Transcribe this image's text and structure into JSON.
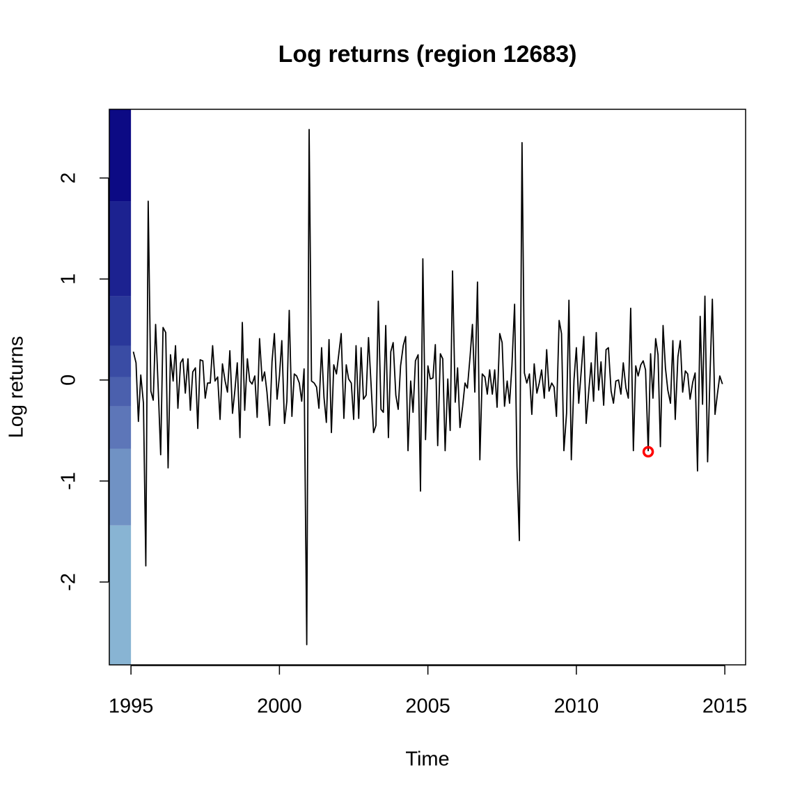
{
  "chart_data": {
    "type": "line",
    "title": "Log returns (region 12683)",
    "x_label": "Time",
    "y_label": "Log returns",
    "xlim": [
      1994.27,
      2015.7
    ],
    "ylim": [
      -2.82,
      2.68
    ],
    "xticks": [
      1995,
      2000,
      2005,
      2010,
      2015
    ],
    "yticks": [
      -2,
      -1,
      0,
      1,
      2
    ],
    "color_bins": {
      "breaks": [
        2.68,
        1.77,
        0.83,
        0.34,
        0.03,
        -0.26,
        -0.68,
        -1.44,
        -2.82
      ],
      "colors": [
        "#0c0a84",
        "#1c2290",
        "#2a389a",
        "#3a4ca4",
        "#4b60ad",
        "#5d76b8",
        "#7092c4",
        "#88b4d3"
      ]
    },
    "series": [
      {
        "color": "#000000",
        "x": [
          1995.08,
          1995.17,
          1995.25,
          1995.33,
          1995.42,
          1995.5,
          1995.58,
          1995.67,
          1995.75,
          1995.83,
          1995.92,
          1996.0,
          1996.08,
          1996.17,
          1996.25,
          1996.33,
          1996.42,
          1996.5,
          1996.58,
          1996.67,
          1996.75,
          1996.83,
          1996.92,
          1997.0,
          1997.08,
          1997.17,
          1997.25,
          1997.33,
          1997.42,
          1997.5,
          1997.58,
          1997.67,
          1997.75,
          1997.83,
          1997.92,
          1998.0,
          1998.08,
          1998.17,
          1998.25,
          1998.33,
          1998.42,
          1998.5,
          1998.58,
          1998.67,
          1998.75,
          1998.83,
          1998.92,
          1999.0,
          1999.08,
          1999.17,
          1999.25,
          1999.33,
          1999.42,
          1999.5,
          1999.58,
          1999.67,
          1999.75,
          1999.83,
          1999.92,
          2000.0,
          2000.08,
          2000.17,
          2000.25,
          2000.33,
          2000.42,
          2000.5,
          2000.58,
          2000.67,
          2000.75,
          2000.83,
          2000.92,
          2001.0,
          2001.08,
          2001.17,
          2001.25,
          2001.33,
          2001.42,
          2001.5,
          2001.58,
          2001.67,
          2001.75,
          2001.83,
          2001.92,
          2002.0,
          2002.08,
          2002.17,
          2002.25,
          2002.33,
          2002.42,
          2002.5,
          2002.58,
          2002.67,
          2002.75,
          2002.83,
          2002.92,
          2003.0,
          2003.08,
          2003.17,
          2003.25,
          2003.33,
          2003.42,
          2003.5,
          2003.58,
          2003.67,
          2003.75,
          2003.83,
          2003.92,
          2004.0,
          2004.08,
          2004.17,
          2004.25,
          2004.33,
          2004.42,
          2004.5,
          2004.58,
          2004.67,
          2004.75,
          2004.83,
          2004.92,
          2005.0,
          2005.08,
          2005.17,
          2005.25,
          2005.33,
          2005.42,
          2005.5,
          2005.58,
          2005.67,
          2005.75,
          2005.83,
          2005.92,
          2006.0,
          2006.08,
          2006.17,
          2006.25,
          2006.33,
          2006.42,
          2006.5,
          2006.58,
          2006.67,
          2006.75,
          2006.83,
          2006.92,
          2007.0,
          2007.08,
          2007.17,
          2007.25,
          2007.33,
          2007.42,
          2007.5,
          2007.58,
          2007.67,
          2007.75,
          2007.83,
          2007.92,
          2008.0,
          2008.08,
          2008.17,
          2008.25,
          2008.33,
          2008.42,
          2008.5,
          2008.58,
          2008.67,
          2008.75,
          2008.83,
          2008.92,
          2009.0,
          2009.08,
          2009.17,
          2009.25,
          2009.33,
          2009.42,
          2009.5,
          2009.58,
          2009.67,
          2009.75,
          2009.83,
          2009.92,
          2010.0,
          2010.08,
          2010.17,
          2010.25,
          2010.33,
          2010.42,
          2010.5,
          2010.58,
          2010.67,
          2010.75,
          2010.83,
          2010.92,
          2011.0,
          2011.08,
          2011.17,
          2011.25,
          2011.33,
          2011.42,
          2011.5,
          2011.58,
          2011.67,
          2011.75,
          2011.83,
          2011.92,
          2012.0,
          2012.08,
          2012.17,
          2012.25,
          2012.33,
          2012.42,
          2012.5,
          2012.58,
          2012.67,
          2012.75,
          2012.83,
          2012.92,
          2013.0,
          2013.08,
          2013.17,
          2013.25,
          2013.33,
          2013.42,
          2013.5,
          2013.58,
          2013.67,
          2013.75,
          2013.83,
          2013.92,
          2014.0,
          2014.08,
          2014.17,
          2014.25,
          2014.33,
          2014.42,
          2014.5,
          2014.58,
          2014.67,
          2014.75,
          2014.83,
          2014.92
        ],
        "values": [
          0.28,
          0.17,
          -0.41,
          0.05,
          -0.23,
          -1.84,
          1.77,
          -0.11,
          -0.2,
          0.55,
          -0.1,
          -0.74,
          0.52,
          0.47,
          -0.87,
          0.25,
          -0.01,
          0.34,
          -0.28,
          0.17,
          0.21,
          -0.13,
          0.21,
          -0.3,
          0.08,
          0.12,
          -0.48,
          0.2,
          0.19,
          -0.18,
          -0.03,
          -0.03,
          0.34,
          -0.01,
          0.03,
          -0.39,
          0.16,
          -0.01,
          -0.12,
          0.29,
          -0.33,
          -0.1,
          0.17,
          -0.57,
          0.57,
          -0.3,
          0.21,
          -0.01,
          -0.04,
          0.04,
          -0.37,
          0.41,
          -0.01,
          0.08,
          -0.12,
          -0.45,
          0.18,
          0.46,
          -0.19,
          0.04,
          0.39,
          -0.43,
          -0.21,
          0.69,
          -0.36,
          0.06,
          0.04,
          -0.03,
          -0.21,
          0.11,
          -2.62,
          2.48,
          -0.01,
          -0.03,
          -0.07,
          -0.28,
          0.32,
          -0.17,
          -0.42,
          0.4,
          -0.52,
          0.15,
          0.06,
          0.26,
          0.46,
          -0.38,
          0.15,
          0.01,
          -0.03,
          -0.39,
          0.34,
          -0.38,
          0.32,
          -0.19,
          -0.15,
          0.42,
          -0.01,
          -0.52,
          -0.45,
          0.78,
          -0.29,
          -0.32,
          0.54,
          -0.57,
          0.28,
          0.37,
          -0.15,
          -0.29,
          0.14,
          0.34,
          0.43,
          -0.7,
          -0.01,
          -0.32,
          0.19,
          0.25,
          -1.1,
          1.2,
          -0.59,
          0.14,
          0.01,
          0.02,
          0.35,
          -0.65,
          0.26,
          0.21,
          -0.7,
          0.01,
          -0.5,
          1.08,
          -0.22,
          0.12,
          -0.47,
          -0.26,
          -0.03,
          -0.08,
          0.23,
          0.55,
          -0.12,
          0.97,
          -0.79,
          0.06,
          0.03,
          -0.14,
          0.1,
          -0.14,
          0.1,
          -0.27,
          0.46,
          0.37,
          -0.26,
          -0.01,
          -0.23,
          0.14,
          0.75,
          -0.86,
          -1.59,
          2.35,
          0.07,
          -0.03,
          0.06,
          -0.34,
          0.16,
          -0.13,
          -0.03,
          0.1,
          -0.18,
          0.3,
          -0.11,
          -0.03,
          -0.07,
          -0.36,
          0.59,
          0.46,
          -0.7,
          -0.33,
          0.79,
          -0.79,
          0.0,
          0.32,
          -0.23,
          0.11,
          0.43,
          -0.43,
          -0.1,
          0.17,
          -0.21,
          0.47,
          -0.1,
          0.18,
          -0.25,
          0.3,
          0.32,
          -0.11,
          -0.23,
          -0.01,
          0.0,
          -0.14,
          0.17,
          -0.08,
          -0.18,
          0.71,
          -0.7,
          0.14,
          0.04,
          0.15,
          0.19,
          0.1,
          -0.7,
          0.26,
          -0.18,
          0.41,
          0.25,
          -0.66,
          0.54,
          0.12,
          -0.1,
          -0.23,
          0.39,
          -0.39,
          0.23,
          0.39,
          -0.12,
          0.09,
          0.06,
          -0.19,
          -0.02,
          0.07,
          -0.9,
          0.63,
          -0.24,
          0.83,
          -0.81,
          0.04,
          0.8,
          -0.34,
          -0.14,
          0.04,
          -0.04
        ]
      }
    ],
    "points": {
      "color": "#ff0000",
      "x": [
        2012.42
      ],
      "values": [
        -0.71
      ]
    }
  }
}
